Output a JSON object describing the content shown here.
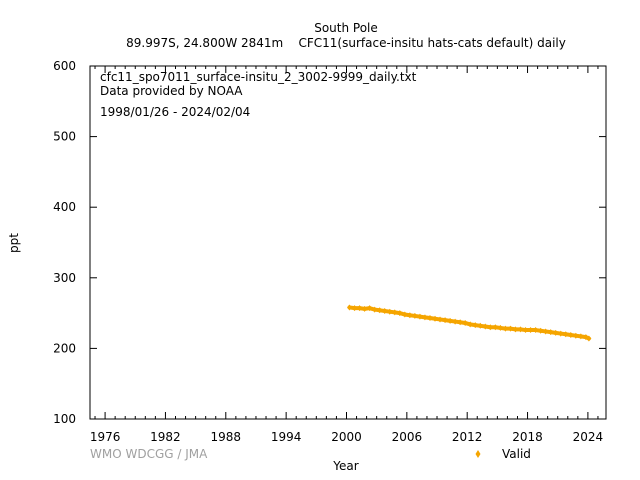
{
  "header": {
    "station": "South Pole",
    "subtitle": "89.997S, 24.800W 2841m    CFC11(surface-insitu hats-cats default) daily"
  },
  "annotations": {
    "filename": "cfc11_spo7011_surface-insitu_2_3002-9999_daily.txt",
    "provider": "Data provided by NOAA",
    "date_range": "1998/01/26 - 2024/02/04"
  },
  "footer": {
    "credit": "WMO WDCGG / JMA"
  },
  "colors": {
    "valid": "#f5a500",
    "credit": "#a0a0a0",
    "axis": "#000000"
  },
  "chart_data": {
    "type": "scatter",
    "xlabel": "Year",
    "ylabel": "ppt",
    "xlim": [
      1974.5,
      2025.8
    ],
    "ylim": [
      100,
      600
    ],
    "x_ticks": [
      1976,
      1982,
      1988,
      1994,
      2000,
      2006,
      2012,
      2018,
      2024
    ],
    "y_ticks": [
      100,
      200,
      300,
      400,
      500,
      600
    ],
    "grid": false,
    "legend_position": "bottom-right",
    "series": [
      {
        "name": "Valid",
        "color": "#f5a500",
        "marker": "diamond",
        "x": [
          2000.3,
          2000.8,
          2001.3,
          2001.8,
          2002.3,
          2002.8,
          2003.3,
          2003.8,
          2004.3,
          2004.8,
          2005.3,
          2005.8,
          2006.3,
          2006.8,
          2007.3,
          2007.8,
          2008.3,
          2008.8,
          2009.3,
          2009.8,
          2010.3,
          2010.8,
          2011.3,
          2011.8,
          2012.3,
          2012.8,
          2013.3,
          2013.8,
          2014.3,
          2014.8,
          2015.3,
          2015.8,
          2016.3,
          2016.8,
          2017.3,
          2017.8,
          2018.3,
          2018.8,
          2019.3,
          2019.8,
          2020.3,
          2020.8,
          2021.3,
          2021.8,
          2022.3,
          2022.8,
          2023.3,
          2023.8,
          2024.1
        ],
        "y": [
          258,
          257,
          257,
          256,
          257,
          255,
          254,
          253,
          252,
          251,
          250,
          248,
          247,
          246,
          245,
          244,
          243,
          242,
          241,
          240,
          239,
          238,
          237,
          236,
          234,
          233,
          232,
          231,
          230,
          230,
          229,
          228,
          228,
          227,
          227,
          226,
          226,
          226,
          225,
          224,
          223,
          222,
          221,
          220,
          219,
          218,
          217,
          216,
          214
        ]
      }
    ]
  }
}
